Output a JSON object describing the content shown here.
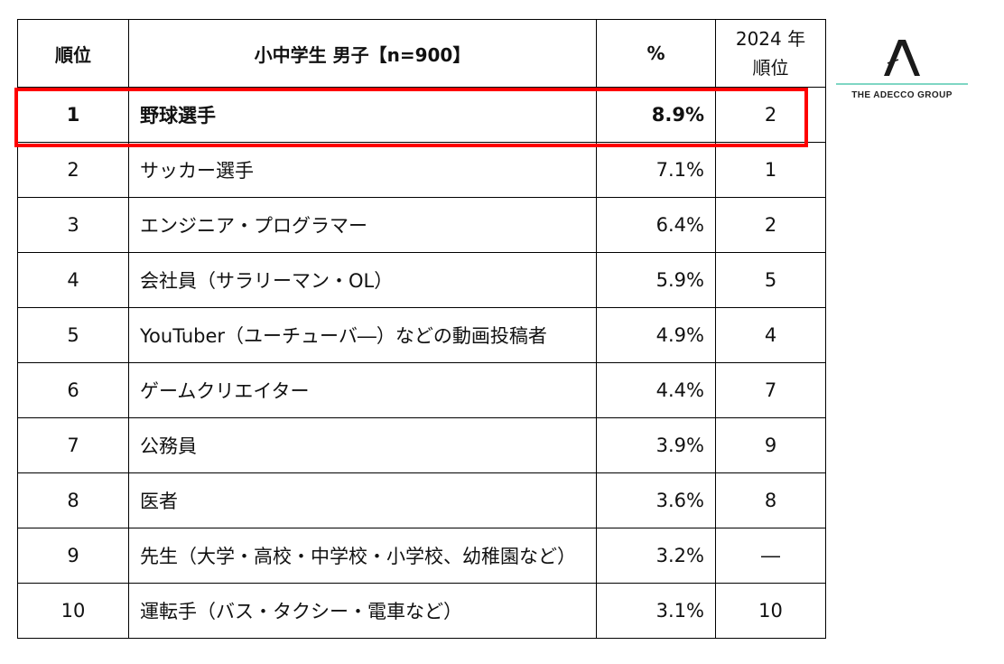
{
  "table": {
    "header": {
      "rank": "順位",
      "job": "小中学生 男子【n=900】",
      "percent": "%",
      "prev_line1": "2024 年",
      "prev_line2": "順位"
    },
    "rows": [
      {
        "rank": "1",
        "job": "野球選手",
        "percent": "8.9%",
        "prev": "2"
      },
      {
        "rank": "2",
        "job": "サッカー選手",
        "percent": "7.1%",
        "prev": "1"
      },
      {
        "rank": "3",
        "job": "エンジニア・プログラマー",
        "percent": "6.4%",
        "prev": "2"
      },
      {
        "rank": "4",
        "job": "会社員（サラリーマン・OL）",
        "percent": "5.9%",
        "prev": "5"
      },
      {
        "rank": "5",
        "job": "YouTuber（ユーチューバ―）などの動画投稿者",
        "percent": "4.9%",
        "prev": "4"
      },
      {
        "rank": "6",
        "job": "ゲームクリエイター",
        "percent": "4.4%",
        "prev": "7"
      },
      {
        "rank": "7",
        "job": "公務員",
        "percent": "3.9%",
        "prev": "9"
      },
      {
        "rank": "8",
        "job": "医者",
        "percent": "3.6%",
        "prev": "8"
      },
      {
        "rank": "9",
        "job": "先生（大学・高校・中学校・小学校、幼稚園など）",
        "percent": "3.2%",
        "prev": "―"
      },
      {
        "rank": "10",
        "job": "運転手（バス・タクシー・電車など）",
        "percent": "3.1%",
        "prev": "10"
      }
    ]
  },
  "logo": {
    "text": "THE ADECCO GROUP",
    "accent_color": "#7fd6c4"
  },
  "highlight": {
    "color": "#ff0000"
  }
}
